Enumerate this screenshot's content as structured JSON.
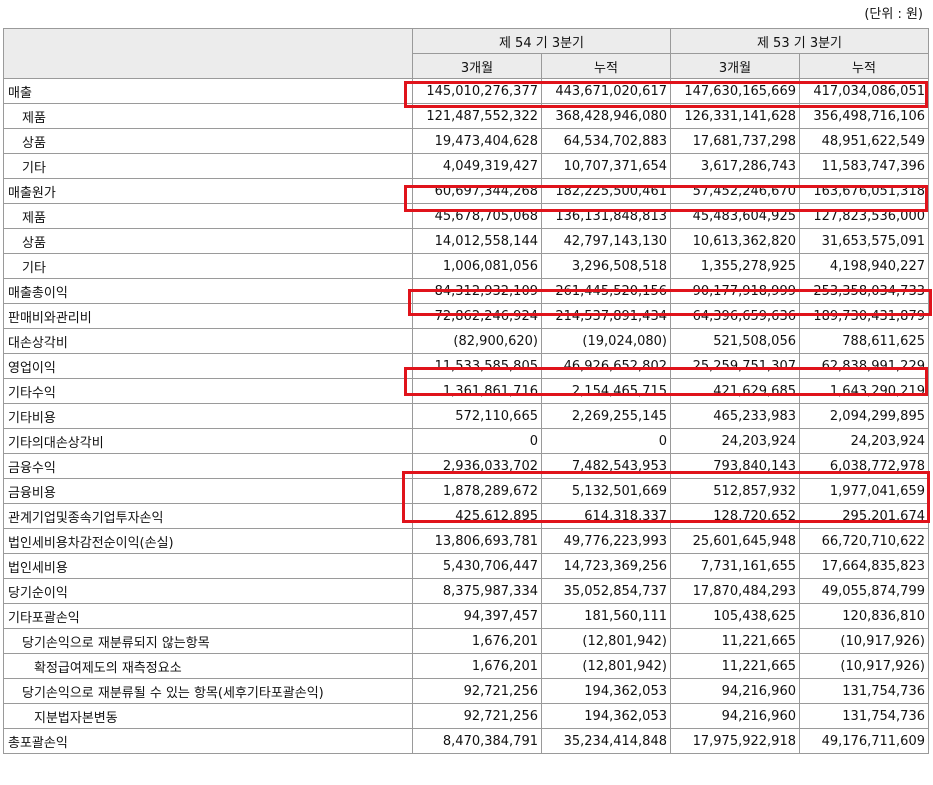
{
  "unit_label": "(단위 : 원)",
  "header": {
    "periods": [
      "제 54 기 3분기",
      "제 53 기 3분기"
    ],
    "subcolumns": [
      "3개월",
      "누적",
      "3개월",
      "누적"
    ]
  },
  "rows": [
    {
      "label": "매출",
      "level": 0,
      "values": [
        "145,010,276,377",
        "443,671,020,617",
        "147,630,165,669",
        "417,034,086,051"
      ]
    },
    {
      "label": "제품",
      "level": 1,
      "values": [
        "121,487,552,322",
        "368,428,946,080",
        "126,331,141,628",
        "356,498,716,106"
      ]
    },
    {
      "label": "상품",
      "level": 1,
      "values": [
        "19,473,404,628",
        "64,534,702,883",
        "17,681,737,298",
        "48,951,622,549"
      ]
    },
    {
      "label": "기타",
      "level": 1,
      "values": [
        "4,049,319,427",
        "10,707,371,654",
        "3,617,286,743",
        "11,583,747,396"
      ]
    },
    {
      "label": "매출원가",
      "level": 0,
      "values": [
        "60,697,344,268",
        "182,225,500,461",
        "57,452,246,670",
        "163,676,051,318"
      ]
    },
    {
      "label": "제품",
      "level": 1,
      "values": [
        "45,678,705,068",
        "136,131,848,813",
        "45,483,604,925",
        "127,823,536,000"
      ]
    },
    {
      "label": "상품",
      "level": 1,
      "values": [
        "14,012,558,144",
        "42,797,143,130",
        "10,613,362,820",
        "31,653,575,091"
      ]
    },
    {
      "label": "기타",
      "level": 1,
      "values": [
        "1,006,081,056",
        "3,296,508,518",
        "1,355,278,925",
        "4,198,940,227"
      ]
    },
    {
      "label": "매출총이익",
      "level": 0,
      "values": [
        "84,312,932,109",
        "261,445,520,156",
        "90,177,918,999",
        "253,358,034,733"
      ]
    },
    {
      "label": "판매비와관리비",
      "level": 0,
      "values": [
        "72,862,246,924",
        "214,537,891,434",
        "64,396,659,636",
        "189,730,431,879"
      ]
    },
    {
      "label": "대손상각비",
      "level": 0,
      "values": [
        "(82,900,620)",
        "(19,024,080)",
        "521,508,056",
        "788,611,625"
      ]
    },
    {
      "label": "영업이익",
      "level": 0,
      "values": [
        "11,533,585,805",
        "46,926,652,802",
        "25,259,751,307",
        "62,838,991,229"
      ]
    },
    {
      "label": "기타수익",
      "level": 0,
      "values": [
        "1,361,861,716",
        "2,154,465,715",
        "421,629,685",
        "1,643,290,219"
      ]
    },
    {
      "label": "기타비용",
      "level": 0,
      "values": [
        "572,110,665",
        "2,269,255,145",
        "465,233,983",
        "2,094,299,895"
      ]
    },
    {
      "label": "기타의대손상각비",
      "level": 0,
      "values": [
        "0",
        "0",
        "24,203,924",
        "24,203,924"
      ]
    },
    {
      "label": "금융수익",
      "level": 0,
      "values": [
        "2,936,033,702",
        "7,482,543,953",
        "793,840,143",
        "6,038,772,978"
      ]
    },
    {
      "label": "금융비용",
      "level": 0,
      "values": [
        "1,878,289,672",
        "5,132,501,669",
        "512,857,932",
        "1,977,041,659"
      ]
    },
    {
      "label": "관계기업및종속기업투자손익",
      "level": 0,
      "values": [
        "425,612,895",
        "614,318,337",
        "128,720,652",
        "295,201,674"
      ]
    },
    {
      "label": "법인세비용차감전순이익(손실)",
      "level": 0,
      "values": [
        "13,806,693,781",
        "49,776,223,993",
        "25,601,645,948",
        "66,720,710,622"
      ]
    },
    {
      "label": "법인세비용",
      "level": 0,
      "values": [
        "5,430,706,447",
        "14,723,369,256",
        "7,731,161,655",
        "17,664,835,823"
      ]
    },
    {
      "label": "당기순이익",
      "level": 0,
      "values": [
        "8,375,987,334",
        "35,052,854,737",
        "17,870,484,293",
        "49,055,874,799"
      ]
    },
    {
      "label": "기타포괄손익",
      "level": 0,
      "values": [
        "94,397,457",
        "181,560,111",
        "105,438,625",
        "120,836,810"
      ]
    },
    {
      "label": "당기손익으로 재분류되지 않는항목",
      "level": 1,
      "values": [
        "1,676,201",
        "(12,801,942)",
        "11,221,665",
        "(10,917,926)"
      ]
    },
    {
      "label": "확정급여제도의 재측정요소",
      "level": 2,
      "values": [
        "1,676,201",
        "(12,801,942)",
        "11,221,665",
        "(10,917,926)"
      ]
    },
    {
      "label": "당기손익으로 재분류될 수 있는 항목(세후기타포괄손익)",
      "level": 1,
      "values": [
        "92,721,256",
        "194,362,053",
        "94,216,960",
        "131,754,736"
      ]
    },
    {
      "label": "지분법자본변동",
      "level": 2,
      "values": [
        "92,721,256",
        "194,362,053",
        "94,216,960",
        "131,754,736"
      ]
    },
    {
      "label": "총포괄손익",
      "level": 0,
      "values": [
        "8,470,384,791",
        "35,234,414,848",
        "17,975,922,918",
        "49,176,711,609"
      ]
    }
  ],
  "highlight_color": "#e0131b"
}
